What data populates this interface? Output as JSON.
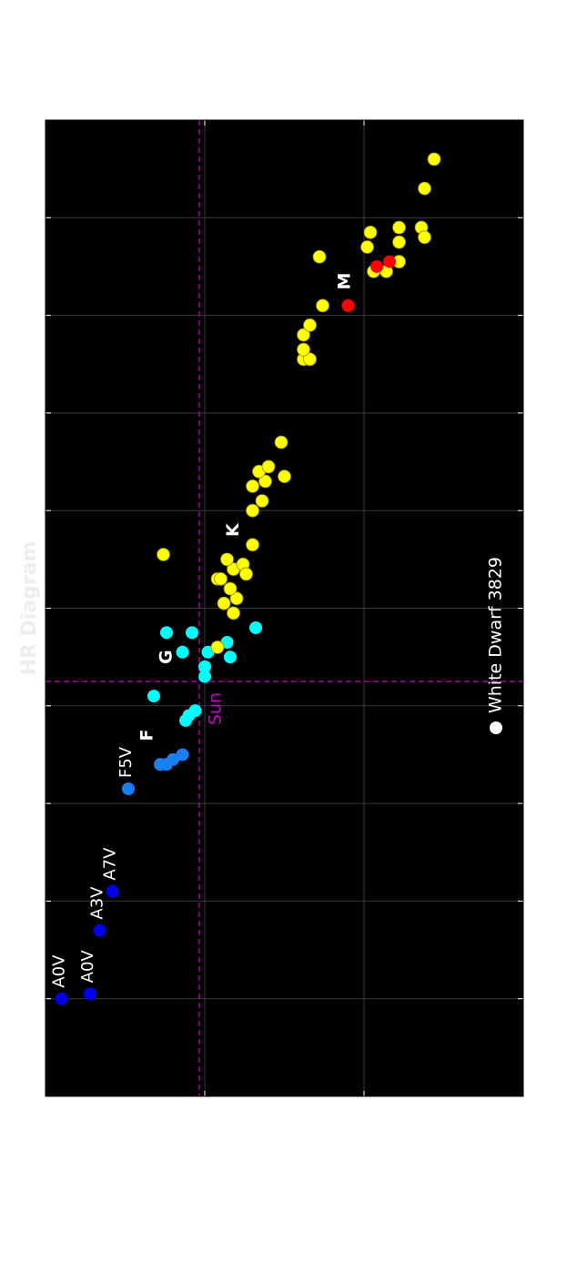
{
  "chart_data": {
    "type": "scatter",
    "title": "HR Diagram",
    "title_color": "#eeeeee",
    "background": "#000000",
    "xlim": [
      -0.2,
      1.8
    ],
    "xticks": [
      -0.2,
      0,
      0.2,
      0.4,
      0.6,
      0.8,
      1,
      1.2,
      1.4,
      1.6,
      1.8
    ],
    "ylim": [
      0,
      15
    ],
    "yticks": [
      0,
      5,
      10,
      15
    ],
    "y_inverted": true,
    "grid": true,
    "x": [
      0,
      0.01,
      0.14,
      0.22,
      0.43,
      0.48,
      0.48,
      0.49,
      0.5,
      0.62,
      0.57,
      0.58,
      0.59,
      0.66,
      0.68,
      0.71,
      0.71,
      0.75,
      0.75,
      0.73,
      0.7,
      0.76,
      0.72,
      0.91,
      0.81,
      0.79,
      0.82,
      0.84,
      0.86,
      0.86,
      0.88,
      0.89,
      0.87,
      0.9,
      0.93,
      1,
      1.02,
      1.06,
      1.05,
      1.08,
      1.09,
      1.07,
      1.14,
      1.31,
      1.31,
      1.33,
      1.36,
      1.38,
      1.42,
      1.52,
      1.49,
      1.49,
      1.51,
      1.54,
      1.57,
      1.55,
      1.58,
      1.58,
      1.56,
      1.66,
      1.72,
      1.42,
      1.5,
      1.51
    ],
    "y": [
      0.5,
      1.4,
      1.7,
      2.1,
      2.6,
      3.6,
      3.8,
      4.0,
      4.3,
      3.4,
      4.4,
      4.5,
      4.7,
      5.0,
      5.0,
      5.1,
      4.3,
      3.8,
      4.6,
      5.7,
      5.8,
      6.6,
      5.4,
      3.7,
      5.6,
      5.9,
      6.0,
      5.8,
      5.4,
      5.5,
      5.9,
      6.2,
      6.3,
      5.7,
      6.5,
      6.5,
      6.8,
      6.9,
      6.5,
      6.7,
      7.0,
      7.5,
      7.4,
      8.1,
      8.3,
      8.1,
      8.1,
      8.3,
      8.7,
      8.6,
      10.3,
      10.7,
      11.1,
      10.1,
      10.2,
      11.1,
      11.1,
      11.8,
      11.9,
      11.9,
      12.2,
      9.5,
      10.4,
      10.8
    ],
    "point_colors": [
      "#0000ee",
      "#0000ee",
      "#0000ee",
      "#0000ee",
      "#1a80f0",
      "#1a80f0",
      "#1a80f0",
      "#1a80f0",
      "#1a80f0",
      "#00ffff",
      "#00ffff",
      "#00ffff",
      "#00ffff",
      "#00ffff",
      "#00ffff",
      "#00ffff",
      "#00ffff",
      "#00ffff",
      "#00ffff",
      "#00ffff",
      "#00ffff",
      "#00ffff",
      "#ffff00",
      "#ffff00",
      "#ffff00",
      "#ffff00",
      "#ffff00",
      "#ffff00",
      "#ffff00",
      "#ffff00",
      "#ffff00",
      "#ffff00",
      "#ffff00",
      "#ffff00",
      "#ffff00",
      "#ffff00",
      "#ffff00",
      "#ffff00",
      "#ffff00",
      "#ffff00",
      "#ffff00",
      "#ffff00",
      "#ffff00",
      "#ffff00",
      "#ffff00",
      "#ffff00",
      "#ffff00",
      "#ffff00",
      "#ffff00",
      "#ffff00",
      "#ffff00",
      "#ffff00",
      "#ffff00",
      "#ffff00",
      "#ffff00",
      "#ffff00",
      "#ffff00",
      "#ffff00",
      "#ffff00",
      "#ffff00",
      "#ffff00",
      "#ff0000",
      "#ff0000",
      "#ff0000"
    ],
    "point_labels": [
      "A0V",
      "A0V",
      "A3V",
      "A7V",
      "F5V",
      null,
      null,
      null,
      null,
      null,
      null,
      null,
      null,
      null,
      null,
      null,
      null,
      null,
      null,
      null,
      null,
      null,
      null,
      null,
      null,
      null,
      null,
      null,
      null,
      null,
      null,
      null,
      null,
      null,
      null,
      null,
      null,
      null,
      null,
      null,
      null,
      null,
      null,
      null,
      null,
      null,
      null,
      null,
      null,
      null,
      null,
      null,
      null,
      null,
      null,
      null,
      null,
      null,
      null,
      null,
      null,
      null,
      null,
      null
    ],
    "annotations": [
      {
        "text": "F",
        "x": 0.54,
        "y": 3.2
      },
      {
        "text": "G",
        "x": 0.7,
        "y": 3.8
      },
      {
        "text": "K",
        "x": 0.96,
        "y": 5.9
      },
      {
        "text": "M",
        "x": 1.47,
        "y": 9.4
      }
    ],
    "sun": {
      "text": "Sun",
      "x": 0.65,
      "y": 4.83,
      "color": "#cc00cc"
    },
    "legend": {
      "loc": "lower center",
      "entries": [
        {
          "name": "White Dwarf 3829",
          "color": "#ffffff"
        }
      ]
    }
  }
}
